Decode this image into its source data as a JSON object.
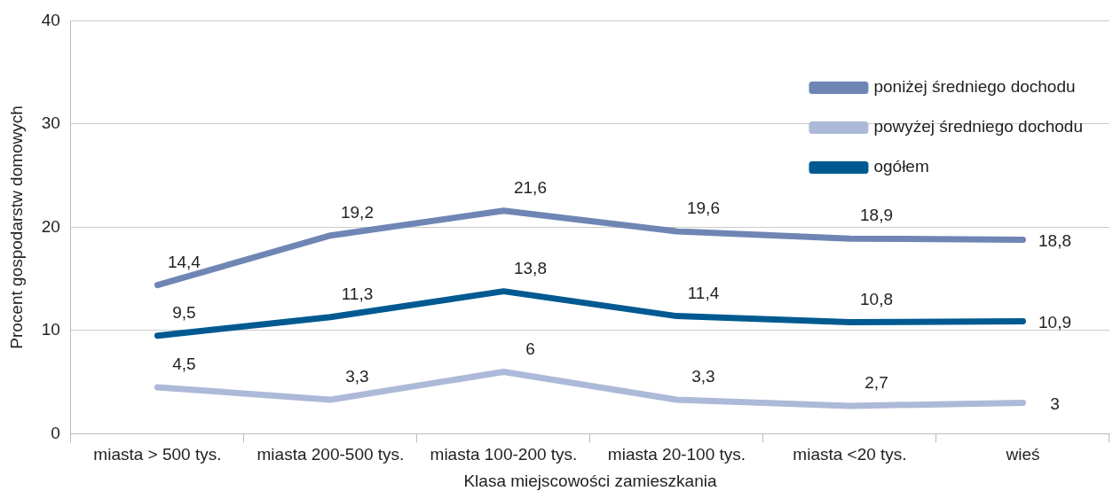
{
  "chart_data": {
    "type": "line",
    "xlabel": "Klasa miejscowości zamieszkania",
    "ylabel": "Procent gospodarstw domowych",
    "categories": [
      "miasta > 500 tys.",
      "miasta 200-500 tys.",
      "miasta 100-200 tys.",
      "miasta 20-100 tys.",
      "miasta <20 tys.",
      "wieś"
    ],
    "series": [
      {
        "name": "poniżej średniego dochodu",
        "color": "#6f86b5",
        "values": [
          14.4,
          19.2,
          21.6,
          19.6,
          18.9,
          18.8
        ],
        "value_labels": [
          "14,4",
          "19,2",
          "21,6",
          "19,6",
          "18,9",
          "18,8"
        ]
      },
      {
        "name": "powyżej średniego dochodu",
        "color": "#adb9d8",
        "values": [
          4.5,
          3.3,
          6,
          3.3,
          2.7,
          3
        ],
        "value_labels": [
          "4,5",
          "3,3",
          "6",
          "3,3",
          "2,7",
          "3"
        ]
      },
      {
        "name": "ogółem",
        "color": "#005a91",
        "values": [
          9.5,
          11.3,
          13.8,
          11.4,
          10.8,
          10.9
        ],
        "value_labels": [
          "9,5",
          "11,3",
          "13,8",
          "11,4",
          "10,8",
          "10,9"
        ]
      }
    ],
    "ylim": [
      0,
      40
    ],
    "yticks": [
      0,
      10,
      20,
      30,
      40
    ],
    "grid": "y",
    "legend": "top right",
    "marker": "none",
    "line_style": "solid"
  }
}
